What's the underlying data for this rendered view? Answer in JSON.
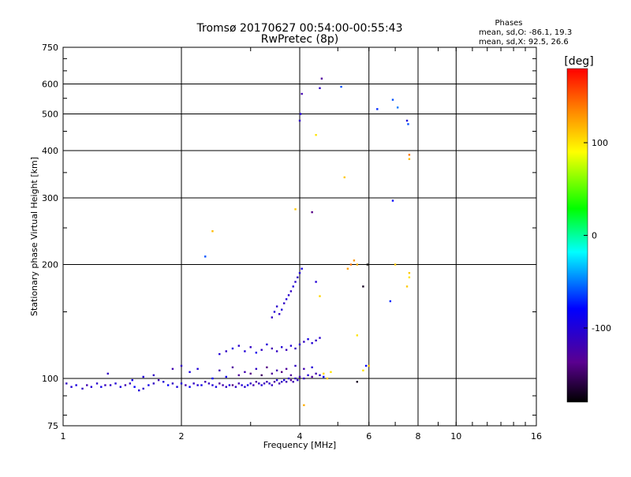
{
  "chart_data": {
    "type": "scatter",
    "title": "Tromsø 20170627 00:54:00-00:55:43",
    "subtitle": "RwPretec (8p)",
    "xlabel": "Frequency [MHz]",
    "ylabel": "Stationary phase Virtual Height [km]",
    "x_scale": "log",
    "y_scale": "log",
    "xlim": [
      1,
      16
    ],
    "ylim": [
      75,
      750
    ],
    "x_ticks": [
      1,
      2,
      4,
      6,
      8,
      10,
      16
    ],
    "y_ticks": [
      75,
      100,
      200,
      300,
      400,
      500,
      600,
      750
    ],
    "grid": true,
    "stats": {
      "header": "Phases",
      "line_o": "mean, sd,O: -86.1, 19.3",
      "line_x": "mean, sd,X:  92.5, 26.6"
    },
    "colorbar": {
      "label": "[deg]",
      "ticks": [
        100,
        0,
        -100
      ],
      "range": [
        -180,
        180
      ]
    },
    "points": [
      [
        1.02,
        97,
        -110
      ],
      [
        1.05,
        95,
        -100
      ],
      [
        1.08,
        96,
        -95
      ],
      [
        1.12,
        94,
        -110
      ],
      [
        1.15,
        96,
        -120
      ],
      [
        1.18,
        95,
        -100
      ],
      [
        1.22,
        97,
        -105
      ],
      [
        1.25,
        95,
        -90
      ],
      [
        1.28,
        96,
        -115
      ],
      [
        1.32,
        96,
        -110
      ],
      [
        1.36,
        97,
        -100
      ],
      [
        1.4,
        95,
        -95
      ],
      [
        1.44,
        96,
        -120
      ],
      [
        1.48,
        97,
        -110
      ],
      [
        1.52,
        95,
        -80
      ],
      [
        1.56,
        93,
        -100
      ],
      [
        1.6,
        94,
        -105
      ],
      [
        1.65,
        96,
        -90
      ],
      [
        1.7,
        97,
        -110
      ],
      [
        1.75,
        99,
        -120
      ],
      [
        1.8,
        98,
        -100
      ],
      [
        1.85,
        96,
        -80
      ],
      [
        1.9,
        97,
        -110
      ],
      [
        1.95,
        95,
        -95
      ],
      [
        2.0,
        97,
        -100
      ],
      [
        2.05,
        96,
        -120
      ],
      [
        2.1,
        95,
        -85
      ],
      [
        2.15,
        97,
        -110
      ],
      [
        2.2,
        96,
        -100
      ],
      [
        2.25,
        96,
        -90
      ],
      [
        2.3,
        98,
        -120
      ],
      [
        2.35,
        97,
        -110
      ],
      [
        2.4,
        96,
        -100
      ],
      [
        2.45,
        95,
        -95
      ],
      [
        2.5,
        97,
        -130
      ],
      [
        2.55,
        96,
        -120
      ],
      [
        2.6,
        95,
        -110
      ],
      [
        2.65,
        96,
        -100
      ],
      [
        2.7,
        96,
        -140
      ],
      [
        2.75,
        95,
        -110
      ],
      [
        2.8,
        97,
        -120
      ],
      [
        2.85,
        96,
        -100
      ],
      [
        2.9,
        95,
        -105
      ],
      [
        2.95,
        96,
        -90
      ],
      [
        3.0,
        97,
        -110
      ],
      [
        3.05,
        96,
        -120
      ],
      [
        3.1,
        98,
        -130
      ],
      [
        3.15,
        97,
        -110
      ],
      [
        3.2,
        96,
        -100
      ],
      [
        3.25,
        97,
        -115
      ],
      [
        3.3,
        98,
        -120
      ],
      [
        3.35,
        97,
        -105
      ],
      [
        3.4,
        96,
        -110
      ],
      [
        3.45,
        98,
        -130
      ],
      [
        3.5,
        99,
        -100
      ],
      [
        3.55,
        97,
        -120
      ],
      [
        3.6,
        98,
        -110
      ],
      [
        3.65,
        99,
        -95
      ],
      [
        3.7,
        98,
        -120
      ],
      [
        3.75,
        100,
        -110
      ],
      [
        3.8,
        99,
        -130
      ],
      [
        3.85,
        98,
        -120
      ],
      [
        3.9,
        100,
        -110
      ],
      [
        3.95,
        99,
        -105
      ],
      [
        4.0,
        101,
        -120
      ],
      [
        4.1,
        100,
        -110
      ],
      [
        4.2,
        102,
        -100
      ],
      [
        4.3,
        101,
        -130
      ],
      [
        4.4,
        103,
        -120
      ],
      [
        4.5,
        102,
        -110
      ],
      [
        4.6,
        101,
        -80
      ],
      [
        1.3,
        103,
        -110
      ],
      [
        1.9,
        106,
        -120
      ],
      [
        2.0,
        108,
        -110
      ],
      [
        2.1,
        104,
        -95
      ],
      [
        2.2,
        106,
        -100
      ],
      [
        2.5,
        105,
        -120
      ],
      [
        2.7,
        107,
        -130
      ],
      [
        2.9,
        104,
        -120
      ],
      [
        3.1,
        106,
        -110
      ],
      [
        3.3,
        107,
        -140
      ],
      [
        3.5,
        105,
        -120
      ],
      [
        3.7,
        106,
        -130
      ],
      [
        3.9,
        108,
        -110
      ],
      [
        4.1,
        106,
        -120
      ],
      [
        4.3,
        107,
        -100
      ],
      [
        1.5,
        99,
        -90
      ],
      [
        1.6,
        101,
        -100
      ],
      [
        1.7,
        102,
        -110
      ],
      [
        2.4,
        100,
        -80
      ],
      [
        2.6,
        101,
        -90
      ],
      [
        2.8,
        102,
        -130
      ],
      [
        3.0,
        103,
        -140
      ],
      [
        3.2,
        102,
        -150
      ],
      [
        3.4,
        103,
        -130
      ],
      [
        3.6,
        104,
        -140
      ],
      [
        3.8,
        102,
        -130
      ],
      [
        2.5,
        116,
        -100
      ],
      [
        2.6,
        118,
        -110
      ],
      [
        2.7,
        120,
        -95
      ],
      [
        2.8,
        122,
        -105
      ],
      [
        2.9,
        118,
        -100
      ],
      [
        3.0,
        121,
        -110
      ],
      [
        3.1,
        117,
        -90
      ],
      [
        3.2,
        119,
        -110
      ],
      [
        3.3,
        123,
        -100
      ],
      [
        3.4,
        120,
        -120
      ],
      [
        3.5,
        118,
        -110
      ],
      [
        3.6,
        121,
        -100
      ],
      [
        3.7,
        119,
        -115
      ],
      [
        3.8,
        122,
        -100
      ],
      [
        3.9,
        120,
        -110
      ],
      [
        4.0,
        123,
        -105
      ],
      [
        4.1,
        125,
        -110
      ],
      [
        4.2,
        127,
        -95
      ],
      [
        4.3,
        124,
        -100
      ],
      [
        4.4,
        126,
        -110
      ],
      [
        4.5,
        128,
        -105
      ],
      [
        3.4,
        145,
        -110
      ],
      [
        3.45,
        150,
        -100
      ],
      [
        3.5,
        155,
        -105
      ],
      [
        3.55,
        148,
        -110
      ],
      [
        3.6,
        152,
        -100
      ],
      [
        3.65,
        158,
        -110
      ],
      [
        3.7,
        162,
        -100
      ],
      [
        3.75,
        166,
        -105
      ],
      [
        3.8,
        170,
        -110
      ],
      [
        3.85,
        175,
        -100
      ],
      [
        3.9,
        180,
        -105
      ],
      [
        3.95,
        185,
        -110
      ],
      [
        4.0,
        190,
        -100
      ],
      [
        4.05,
        195,
        -95
      ],
      [
        4.0,
        480,
        -110
      ],
      [
        4.02,
        500,
        -100
      ],
      [
        4.05,
        565,
        -120
      ],
      [
        4.5,
        585,
        -110
      ],
      [
        4.55,
        620,
        -130
      ],
      [
        4.3,
        275,
        -140
      ],
      [
        4.4,
        180,
        -100
      ],
      [
        5.1,
        590,
        -60
      ],
      [
        6.3,
        515,
        -70
      ],
      [
        6.9,
        545,
        -60
      ],
      [
        7.1,
        520,
        -50
      ],
      [
        7.5,
        480,
        -100
      ],
      [
        7.55,
        470,
        -60
      ],
      [
        6.9,
        295,
        -80
      ],
      [
        6.8,
        160,
        -70
      ],
      [
        2.3,
        210,
        -60
      ],
      [
        5.9,
        108,
        -80
      ],
      [
        2.4,
        245,
        115
      ],
      [
        3.9,
        280,
        110
      ],
      [
        4.4,
        440,
        100
      ],
      [
        4.5,
        165,
        105
      ],
      [
        5.2,
        340,
        110
      ],
      [
        5.4,
        200,
        140
      ],
      [
        5.5,
        205,
        130
      ],
      [
        5.6,
        200,
        120
      ],
      [
        5.6,
        130,
        100
      ],
      [
        5.8,
        105,
        100
      ],
      [
        6.0,
        108,
        110
      ],
      [
        7.6,
        390,
        140
      ],
      [
        7.6,
        380,
        115
      ],
      [
        7.6,
        190,
        110
      ],
      [
        7.6,
        185,
        100
      ],
      [
        7.5,
        175,
        110
      ],
      [
        7.0,
        200,
        110
      ],
      [
        4.6,
        103,
        105
      ],
      [
        4.7,
        100,
        110
      ],
      [
        4.8,
        104,
        100
      ],
      [
        5.3,
        195,
        125
      ],
      [
        4.1,
        85,
        120
      ],
      [
        5.6,
        98,
        -170
      ],
      [
        5.8,
        175,
        -170
      ],
      [
        5.95,
        200,
        -180
      ]
    ]
  }
}
